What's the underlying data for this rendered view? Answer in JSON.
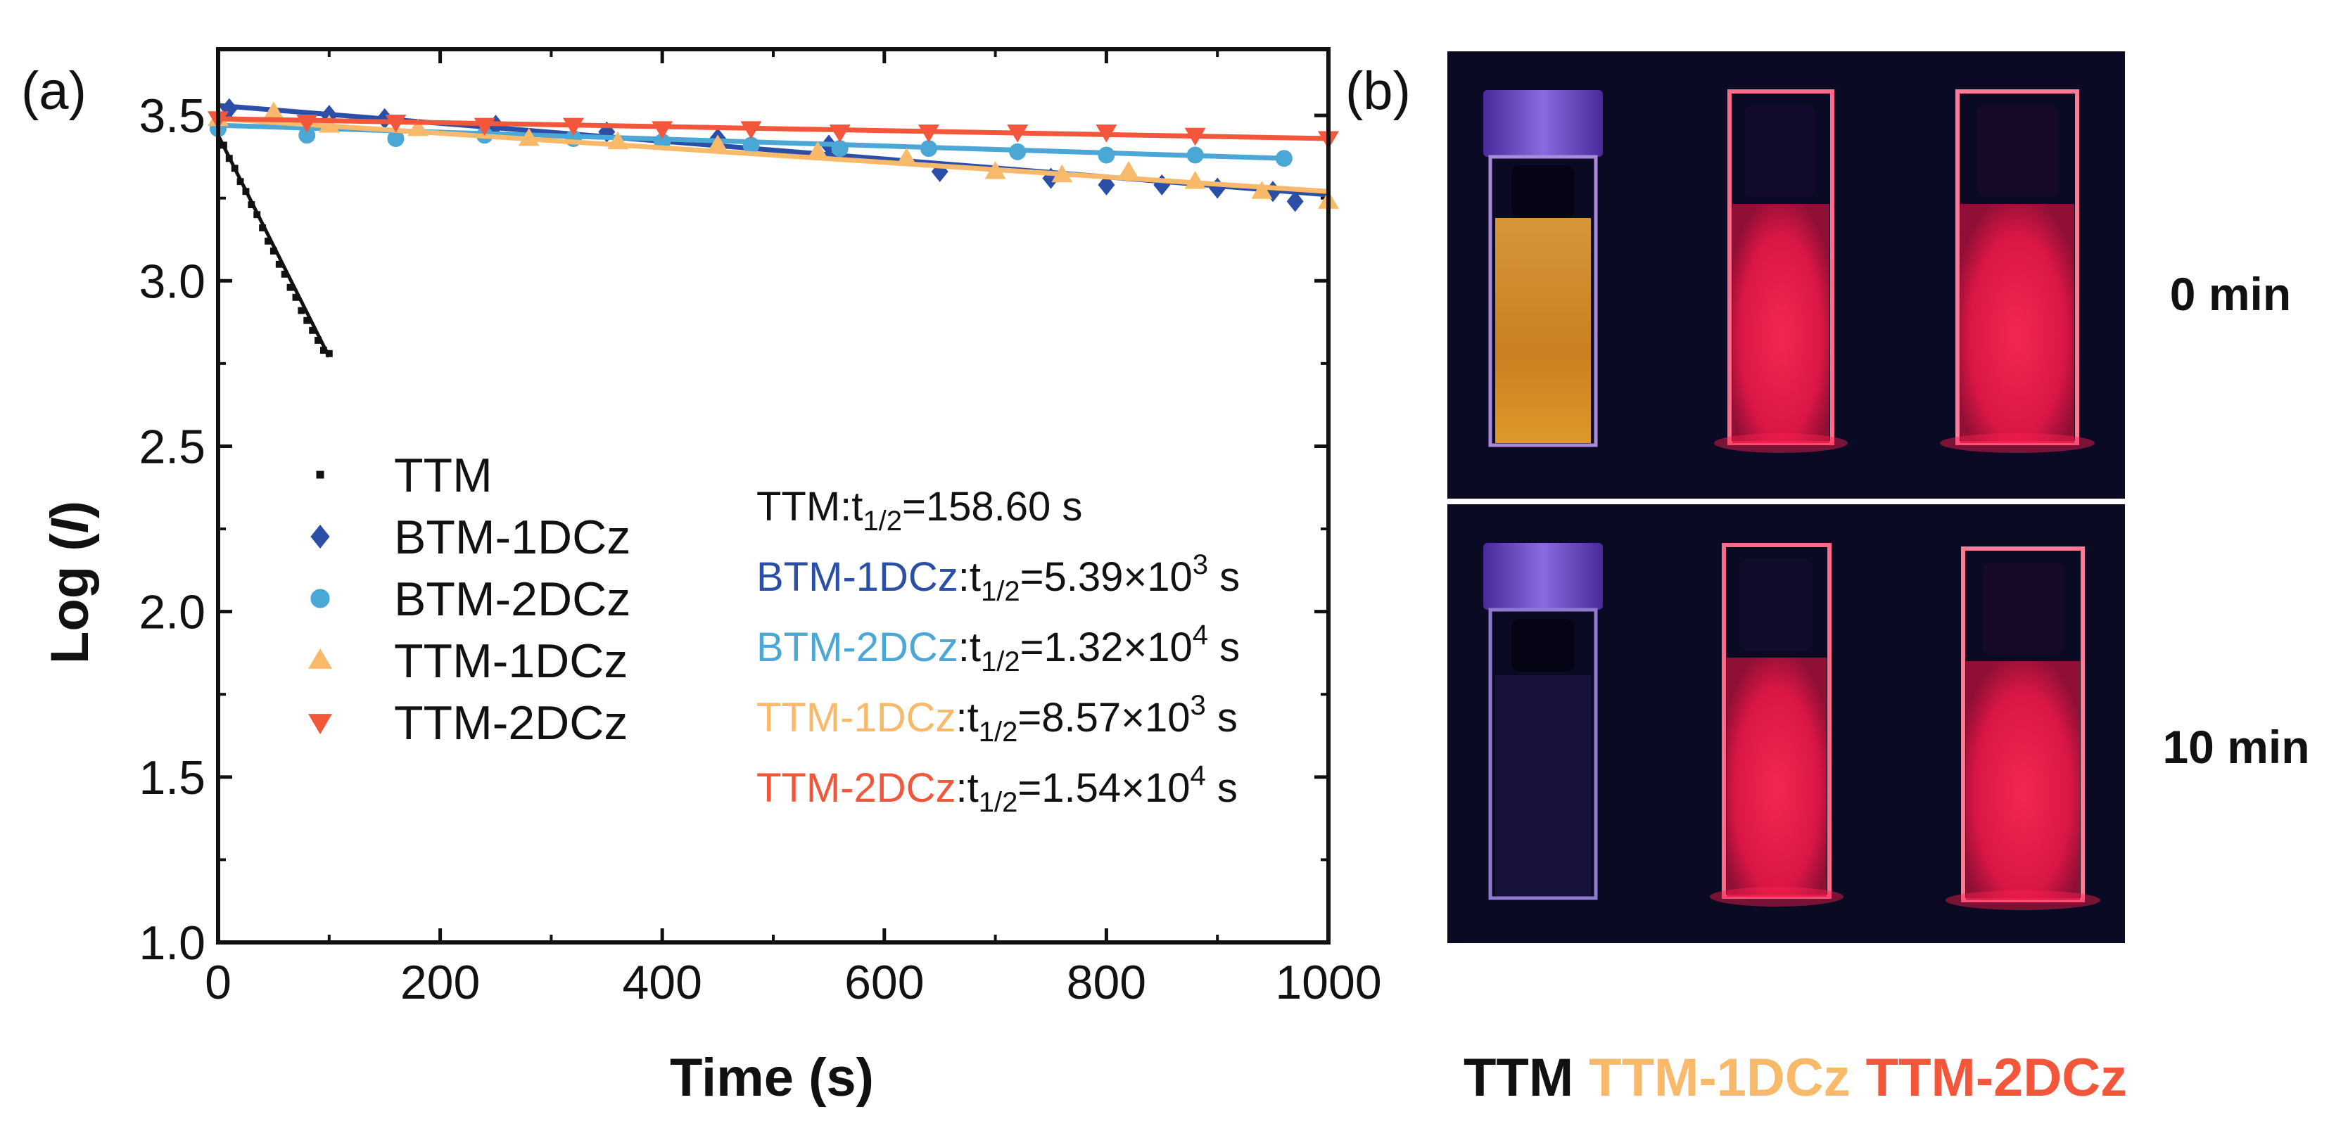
{
  "panel_a_label": "(a)",
  "panel_b_label": "(b)",
  "chart_data": {
    "type": "scatter",
    "xlabel": "Time (s)",
    "ylabel_prefix": "Log (",
    "ylabel_var": "I",
    "ylabel_suffix": ")",
    "xlim": [
      0,
      1000
    ],
    "ylim": [
      1.0,
      3.7
    ],
    "xticks": [
      0,
      200,
      400,
      600,
      800,
      1000
    ],
    "yticks": [
      1.0,
      1.5,
      2.0,
      2.5,
      3.0,
      3.5
    ],
    "grid": false,
    "legend_position": "lower-left",
    "series": [
      {
        "name": "TTM",
        "color": "#111111",
        "marker": "square",
        "x": [
          0,
          5,
          10,
          15,
          20,
          25,
          30,
          35,
          40,
          45,
          50,
          55,
          60,
          65,
          70,
          75,
          80,
          85,
          90,
          95,
          100
        ],
        "y": [
          3.45,
          3.41,
          3.37,
          3.34,
          3.3,
          3.27,
          3.23,
          3.2,
          3.16,
          3.12,
          3.09,
          3.05,
          3.02,
          2.98,
          2.95,
          2.91,
          2.88,
          2.85,
          2.82,
          2.79,
          2.78
        ],
        "fit": [
          [
            0,
            3.44
          ],
          [
            100,
            2.77
          ]
        ]
      },
      {
        "name": "BTM-1DCz",
        "color": "#2B4FA6",
        "marker": "diamond",
        "x": [
          10,
          100,
          150,
          250,
          350,
          450,
          550,
          650,
          750,
          800,
          850,
          900,
          950,
          970
        ],
        "y": [
          3.52,
          3.5,
          3.49,
          3.47,
          3.45,
          3.43,
          3.41,
          3.33,
          3.31,
          3.29,
          3.29,
          3.28,
          3.27,
          3.24
        ],
        "fit": [
          [
            0,
            3.53
          ],
          [
            1000,
            3.26
          ]
        ]
      },
      {
        "name": "BTM-2DCz",
        "color": "#4BA8D6",
        "marker": "circle",
        "x": [
          0,
          80,
          160,
          240,
          320,
          400,
          480,
          560,
          640,
          720,
          800,
          880,
          960
        ],
        "y": [
          3.46,
          3.44,
          3.43,
          3.44,
          3.43,
          3.42,
          3.41,
          3.4,
          3.4,
          3.39,
          3.38,
          3.38,
          3.37
        ],
        "fit": [
          [
            0,
            3.47
          ],
          [
            960,
            3.37
          ]
        ]
      },
      {
        "name": "TTM-1DCz",
        "color": "#F9B96A",
        "marker": "triangle-up",
        "x": [
          0,
          50,
          100,
          180,
          280,
          360,
          450,
          540,
          620,
          700,
          760,
          820,
          880,
          940,
          1000
        ],
        "y": [
          3.49,
          3.51,
          3.47,
          3.46,
          3.43,
          3.42,
          3.41,
          3.39,
          3.37,
          3.33,
          3.32,
          3.33,
          3.3,
          3.27,
          3.24
        ],
        "fit": [
          [
            0,
            3.49
          ],
          [
            1000,
            3.27
          ]
        ]
      },
      {
        "name": "TTM-2DCz",
        "color": "#F2573B",
        "marker": "triangle-down",
        "x": [
          0,
          80,
          160,
          240,
          320,
          400,
          480,
          560,
          640,
          720,
          800,
          880,
          1000
        ],
        "y": [
          3.49,
          3.48,
          3.48,
          3.47,
          3.47,
          3.46,
          3.46,
          3.45,
          3.45,
          3.45,
          3.45,
          3.44,
          3.43
        ],
        "fit": [
          [
            0,
            3.49
          ],
          [
            1000,
            3.43
          ]
        ]
      }
    ],
    "annotations": [
      {
        "name": "TTM",
        "sep": ":t",
        "sub": "1/2",
        "eq": "=158.60 s",
        "sup": "",
        "unit": "",
        "name_color": "#111111"
      },
      {
        "name": "BTM-1DCz",
        "sep": ":t",
        "sub": "1/2",
        "eq": "=5.39×10",
        "sup": "3",
        "unit": " s",
        "name_color": "#2B4FA6"
      },
      {
        "name": "BTM-2DCz",
        "sep": ":t",
        "sub": "1/2",
        "eq": "=1.32×10",
        "sup": "4",
        "unit": " s",
        "name_color": "#4BA8D6"
      },
      {
        "name": "TTM-1DCz",
        "sep": ":t",
        "sub": "1/2",
        "eq": "=8.57×10",
        "sup": "3",
        "unit": " s",
        "name_color": "#F9B96A"
      },
      {
        "name": "TTM-2DCz",
        "sep": ":t",
        "sub": "1/2",
        "eq": "=1.54×10",
        "sup": "4",
        "unit": " s",
        "name_color": "#F2573B"
      }
    ]
  },
  "photo": {
    "time_labels": [
      "0 min",
      "10 min"
    ],
    "sample_labels": [
      {
        "text": "TTM",
        "color": "#111111"
      },
      {
        "text": "TTM-1DCz",
        "color": "#F9B96A"
      },
      {
        "text": "TTM-2DCz",
        "color": "#F2573B"
      }
    ]
  }
}
